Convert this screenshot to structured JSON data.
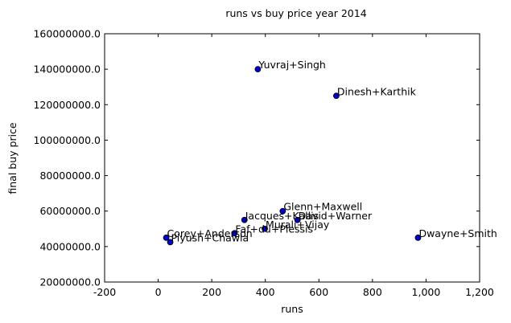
{
  "chart_data": {
    "type": "scatter",
    "title": "runs vs buy price year 2014",
    "xlabel": "runs",
    "ylabel": "final buy price",
    "xlim": [
      -200,
      1200
    ],
    "ylim": [
      20000000,
      160000000
    ],
    "xticks": [
      -200,
      0,
      200,
      400,
      600,
      800,
      1000,
      1200
    ],
    "xtick_labels": [
      "-200",
      "0",
      "200",
      "400",
      "600",
      "800",
      "1,000",
      "1,200"
    ],
    "yticks": [
      20000000,
      40000000,
      60000000,
      80000000,
      100000000,
      120000000,
      140000000,
      160000000
    ],
    "ytick_labels": [
      "20000000.0",
      "40000000.0",
      "60000000.0",
      "80000000.0",
      "100000000.0",
      "120000000.0",
      "140000000.0",
      "160000000.0"
    ],
    "grid": false,
    "marker_color": "#0000cc",
    "points": [
      {
        "label": "Yuvraj+Singh",
        "x": 372,
        "y": 140000000
      },
      {
        "label": "Dinesh+Karthik",
        "x": 665,
        "y": 125000000
      },
      {
        "label": "Glenn+Maxwell",
        "x": 465,
        "y": 60000000
      },
      {
        "label": "David+Warner",
        "x": 520,
        "y": 55000000
      },
      {
        "label": "Jacques+Kallis",
        "x": 322,
        "y": 55000000
      },
      {
        "label": "Murali+Vijay",
        "x": 398,
        "y": 50000000
      },
      {
        "label": "Faf+du+Plessis",
        "x": 285,
        "y": 47500000
      },
      {
        "label": "Corey+Anderson",
        "x": 30,
        "y": 45000000
      },
      {
        "label": "Piyush+Chawla",
        "x": 45,
        "y": 42500000
      },
      {
        "label": "Dwayne+Smith",
        "x": 970,
        "y": 45000000
      }
    ]
  }
}
